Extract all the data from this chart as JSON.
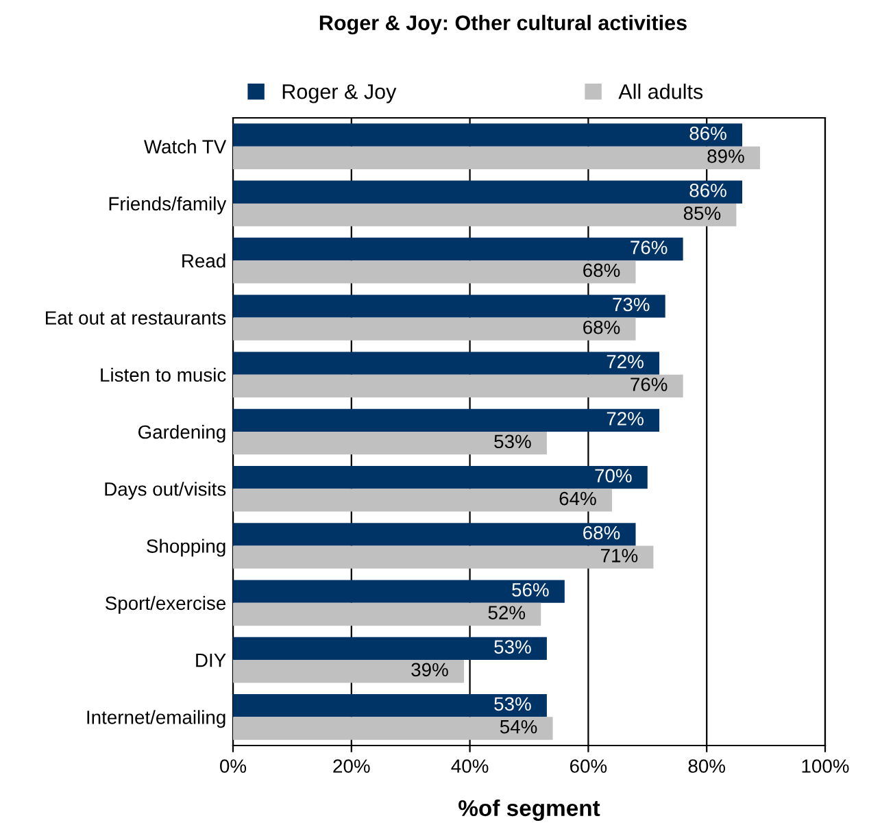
{
  "chart_data": {
    "type": "bar",
    "orientation": "horizontal",
    "title": "Roger & Joy: Other cultural activities",
    "xlabel": "%of segment",
    "categories": [
      "Watch TV",
      "Friends/family",
      "Read",
      "Eat out at restaurants",
      "Listen to music",
      "Gardening",
      "Days out/visits",
      "Shopping",
      "Sport/exercise",
      "DIY",
      "Internet/emailing"
    ],
    "series": [
      {
        "name": "Roger & Joy",
        "color": "#003366",
        "values": [
          86,
          86,
          76,
          73,
          72,
          72,
          70,
          68,
          56,
          53,
          53
        ],
        "value_labels": [
          "86%",
          "86%",
          "76%",
          "73%",
          "72%",
          "72%",
          "70%",
          "68%",
          "56%",
          "53%",
          "53%"
        ]
      },
      {
        "name": "All adults",
        "color": "#c0c0c0",
        "values": [
          89,
          85,
          68,
          68,
          76,
          53,
          64,
          71,
          52,
          39,
          54
        ],
        "value_labels": [
          "89%",
          "85%",
          "68%",
          "68%",
          "76%",
          "53%",
          "64%",
          "71%",
          "52%",
          "39%",
          "54%"
        ]
      }
    ],
    "xlim": [
      0,
      100
    ],
    "xticks": [
      {
        "value": 0,
        "label": "0%"
      },
      {
        "value": 20,
        "label": "20%"
      },
      {
        "value": 40,
        "label": "40%"
      },
      {
        "value": 60,
        "label": "60%"
      },
      {
        "value": 80,
        "label": "80%"
      },
      {
        "value": 100,
        "label": "100%"
      }
    ],
    "grid": "x",
    "legend": "top"
  }
}
